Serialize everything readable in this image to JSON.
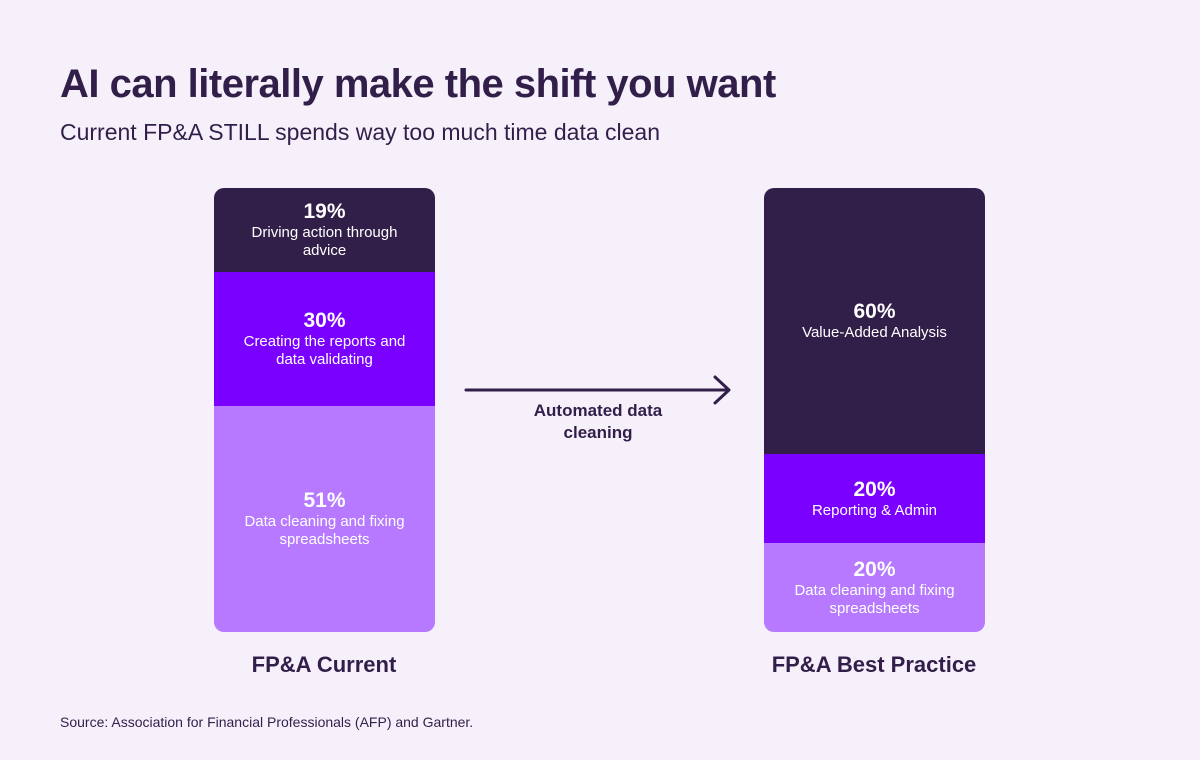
{
  "title": "AI can literally make the shift you want",
  "subtitle": "Current FP&A STILL spends way too much time data clean",
  "arrow_label": "Automated data cleaning",
  "source": "Source: Association for Financial Professionals (AFP) and Gartner.",
  "colors": {
    "background": "#f6f0fb",
    "dark": "#311f4a",
    "violet": "#7a00ff",
    "lavender": "#b679ff",
    "text_light": "#ffffff"
  },
  "chart_data": {
    "type": "stacked-bar",
    "title": "AI can literally make the shift you want",
    "subtitle": "Current FP&A STILL spends way too much time data clean",
    "unit": "%",
    "annotation": "Automated data cleaning",
    "bars": [
      {
        "name": "FP&A Current",
        "segments": [
          {
            "value": 19,
            "label": "Driving action through advice",
            "display": "19%",
            "color": "#311f4a"
          },
          {
            "value": 30,
            "label": "Creating the reports and data validating",
            "display": "30%",
            "color": "#7a00ff"
          },
          {
            "value": 51,
            "label": "Data cleaning and fixing spreadsheets",
            "display": "51%",
            "color": "#b679ff"
          }
        ]
      },
      {
        "name": "FP&A Best Practice",
        "segments": [
          {
            "value": 60,
            "label": "Value-Added Analysis",
            "display": "60%",
            "color": "#311f4a"
          },
          {
            "value": 20,
            "label": "Reporting & Admin",
            "display": "20%",
            "color": "#7a00ff"
          },
          {
            "value": 20,
            "label": "Data cleaning and fixing spreadsheets",
            "display": "20%",
            "color": "#b679ff"
          }
        ]
      }
    ]
  }
}
